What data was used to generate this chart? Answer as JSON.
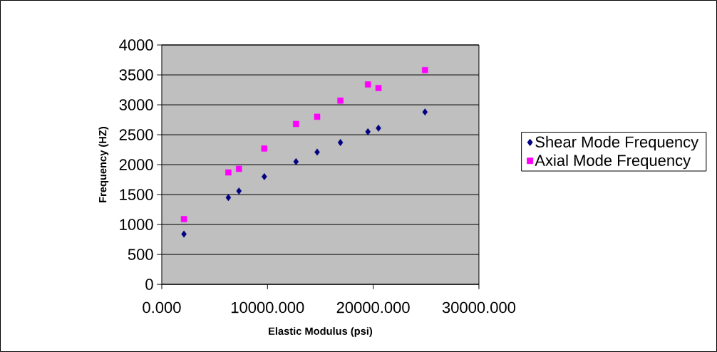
{
  "chart_data": {
    "type": "scatter",
    "xlabel": "Elastic Modulus (psi)",
    "ylabel": "Frequency (HZ)",
    "xlim": [
      0,
      30000
    ],
    "ylim": [
      0,
      4000
    ],
    "xticks": [
      {
        "value": 0,
        "label": "0.000"
      },
      {
        "value": 10000,
        "label": "10000.000"
      },
      {
        "value": 20000,
        "label": "20000.000"
      },
      {
        "value": 30000,
        "label": "30000.000"
      }
    ],
    "yticks": [
      0,
      500,
      1000,
      1500,
      2000,
      2500,
      3000,
      3500,
      4000
    ],
    "grid": "y",
    "legend": "right",
    "series": [
      {
        "name": "Shear Mode Frequency",
        "color": "#000080",
        "marker": "diamond",
        "x": [
          2100,
          6300,
          7300,
          9700,
          12700,
          14700,
          16900,
          19500,
          20500,
          24900
        ],
        "values": [
          840,
          1450,
          1560,
          1800,
          2050,
          2210,
          2370,
          2550,
          2610,
          2880
        ]
      },
      {
        "name": "Axial Mode Frequency",
        "color": "#ff00ff",
        "marker": "square",
        "x": [
          2100,
          6300,
          7300,
          9700,
          12700,
          14700,
          16900,
          19500,
          20500,
          24900
        ],
        "values": [
          1090,
          1870,
          1930,
          2270,
          2680,
          2800,
          3070,
          3340,
          3280,
          3580
        ]
      }
    ]
  }
}
